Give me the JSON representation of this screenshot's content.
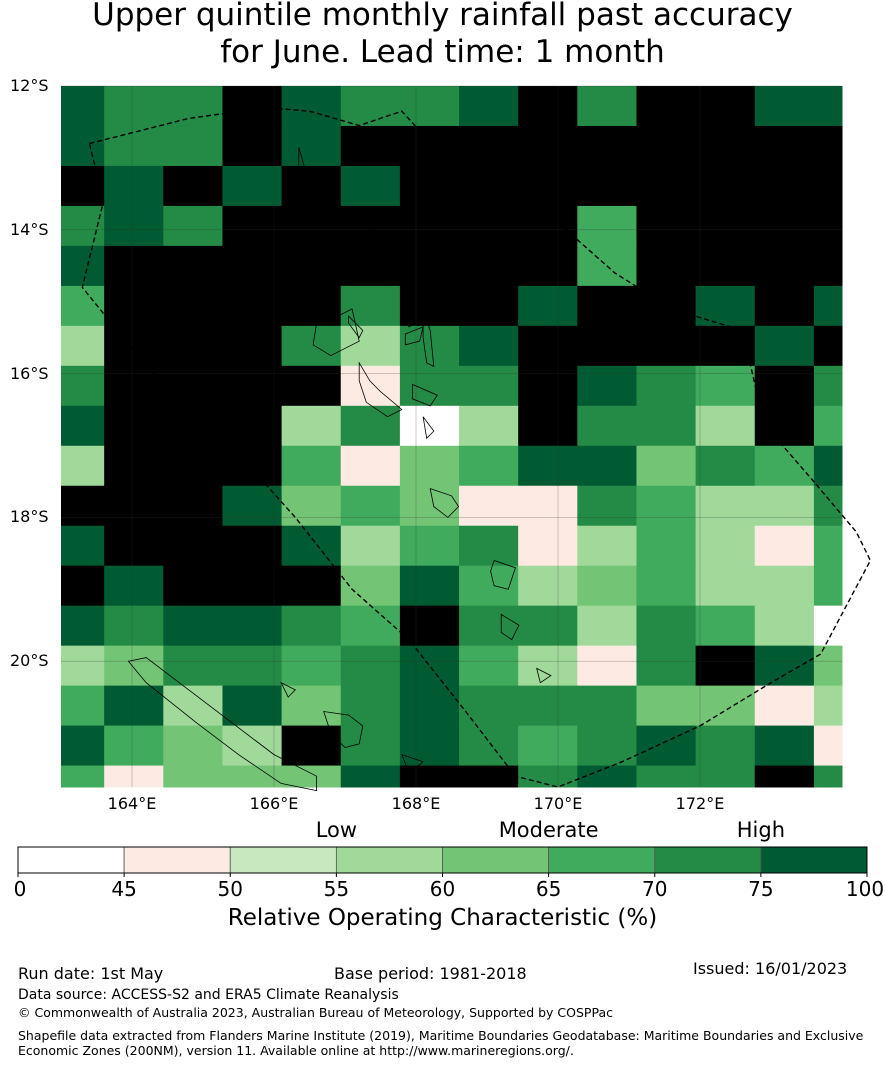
{
  "title_line1": "Upper quintile monthly rainfall past accuracy",
  "title_line2": "for June. Lead time: 1 month",
  "map": {
    "lon_min": 163.0,
    "lon_max": 174.0,
    "lat_min": -21.75,
    "lat_max": -12.0,
    "cell_lon": 0.833,
    "cell_lat": 0.556,
    "lat_ticks": [
      {
        "value": -12,
        "label": "12°S"
      },
      {
        "value": -14,
        "label": "14°S"
      },
      {
        "value": -16,
        "label": "16°S"
      },
      {
        "value": -18,
        "label": "18°S"
      },
      {
        "value": -20,
        "label": "20°S"
      }
    ],
    "lon_ticks": [
      {
        "value": 164,
        "label": "164°E"
      },
      {
        "value": 166,
        "label": "166°E"
      },
      {
        "value": 168,
        "label": "168°E"
      },
      {
        "value": 170,
        "label": "170°E"
      },
      {
        "value": 172,
        "label": "172°E"
      }
    ],
    "grid": [
      [
        7,
        6,
        6,
        8,
        7,
        6,
        6,
        7,
        8,
        6,
        8,
        8,
        7,
        7
      ],
      [
        7,
        6,
        6,
        8,
        7,
        8,
        8,
        8,
        8,
        8,
        8,
        8,
        8,
        8
      ],
      [
        8,
        7,
        8,
        7,
        8,
        7,
        8,
        8,
        8,
        8,
        8,
        8,
        8,
        8
      ],
      [
        6,
        7,
        6,
        8,
        8,
        8,
        8,
        8,
        8,
        5,
        8,
        8,
        8,
        8
      ],
      [
        7,
        8,
        8,
        8,
        8,
        8,
        8,
        8,
        8,
        5,
        8,
        8,
        8,
        8
      ],
      [
        5,
        8,
        8,
        8,
        8,
        6,
        8,
        8,
        7,
        8,
        8,
        7,
        8,
        7
      ],
      [
        3,
        8,
        8,
        8,
        6,
        3,
        6,
        7,
        8,
        8,
        8,
        8,
        7,
        8
      ],
      [
        6,
        8,
        8,
        8,
        8,
        1,
        6,
        6,
        8,
        7,
        6,
        5,
        8,
        6
      ],
      [
        7,
        8,
        8,
        8,
        3,
        6,
        0,
        3,
        8,
        6,
        6,
        3,
        8,
        5
      ],
      [
        3,
        8,
        8,
        8,
        5,
        1,
        4,
        5,
        7,
        7,
        4,
        6,
        5,
        7
      ],
      [
        8,
        8,
        8,
        7,
        4,
        5,
        4,
        1,
        1,
        6,
        5,
        3,
        3,
        6
      ],
      [
        7,
        8,
        8,
        8,
        7,
        3,
        5,
        6,
        1,
        3,
        5,
        3,
        1,
        5
      ],
      [
        8,
        7,
        8,
        8,
        8,
        4,
        7,
        5,
        3,
        4,
        5,
        3,
        3,
        5
      ],
      [
        7,
        6,
        7,
        7,
        6,
        5,
        8,
        6,
        6,
        3,
        6,
        5,
        3,
        0
      ],
      [
        3,
        4,
        6,
        6,
        5,
        6,
        7,
        5,
        3,
        1,
        6,
        8,
        7,
        4
      ],
      [
        5,
        7,
        3,
        7,
        4,
        6,
        7,
        6,
        6,
        6,
        4,
        4,
        1,
        3
      ],
      [
        7,
        5,
        4,
        3,
        8,
        6,
        7,
        6,
        5,
        6,
        7,
        6,
        7,
        1
      ],
      [
        5,
        1,
        4,
        4,
        4,
        7,
        8,
        8,
        6,
        7,
        6,
        6,
        8,
        6
      ],
      [
        6,
        4,
        1,
        6,
        1,
        5,
        8,
        7,
        7,
        5,
        8,
        6,
        8,
        4
      ]
    ],
    "eez_boundary": [
      [
        163.4,
        -12.8
      ],
      [
        164.8,
        -12.45
      ],
      [
        165.9,
        -12.3
      ],
      [
        166.5,
        -12.35
      ],
      [
        167.2,
        -12.55
      ],
      [
        167.8,
        -12.35
      ],
      [
        168.4,
        -13.0
      ],
      [
        169.0,
        -13.6
      ],
      [
        170.0,
        -13.9
      ],
      [
        170.8,
        -14.6
      ],
      [
        171.6,
        -15.1
      ],
      [
        172.6,
        -15.4
      ],
      [
        172.9,
        -16.7
      ],
      [
        173.6,
        -17.5
      ],
      [
        174.2,
        -18.2
      ],
      [
        174.4,
        -18.6
      ],
      [
        173.7,
        -19.9
      ],
      [
        173.0,
        -20.3
      ],
      [
        172.0,
        -20.9
      ],
      [
        170.9,
        -21.4
      ],
      [
        170.0,
        -21.75
      ],
      [
        169.4,
        -21.6
      ],
      [
        168.7,
        -20.7
      ],
      [
        167.9,
        -19.7
      ],
      [
        167.1,
        -19.0
      ],
      [
        166.3,
        -18.0
      ],
      [
        165.3,
        -16.9
      ],
      [
        164.2,
        -15.9
      ],
      [
        163.3,
        -14.8
      ],
      [
        163.6,
        -13.6
      ],
      [
        163.4,
        -12.8
      ]
    ],
    "islands": [
      [
        [
          166.35,
          -14.7
        ],
        [
          166.5,
          -14.85
        ],
        [
          166.6,
          -15.3
        ],
        [
          166.55,
          -15.6
        ],
        [
          166.8,
          -15.75
        ],
        [
          167.2,
          -15.55
        ],
        [
          167.1,
          -15.1
        ],
        [
          166.9,
          -15.2
        ],
        [
          166.8,
          -15.0
        ],
        [
          166.45,
          -14.65
        ],
        [
          166.35,
          -14.7
        ]
      ],
      [
        [
          167.05,
          -15.2
        ],
        [
          167.25,
          -15.4
        ],
        [
          167.2,
          -15.5
        ],
        [
          167.05,
          -15.3
        ],
        [
          167.05,
          -15.2
        ]
      ],
      [
        [
          167.85,
          -15.45
        ],
        [
          168.1,
          -15.35
        ],
        [
          168.05,
          -15.55
        ],
        [
          167.85,
          -15.6
        ],
        [
          167.85,
          -15.45
        ]
      ],
      [
        [
          168.1,
          -15.1
        ],
        [
          168.2,
          -15.4
        ],
        [
          168.25,
          -15.9
        ],
        [
          168.15,
          -15.85
        ],
        [
          168.1,
          -15.5
        ],
        [
          168.1,
          -15.1
        ]
      ],
      [
        [
          167.2,
          -15.85
        ],
        [
          167.35,
          -16.1
        ],
        [
          167.5,
          -16.25
        ],
        [
          167.8,
          -16.5
        ],
        [
          167.6,
          -16.6
        ],
        [
          167.3,
          -16.4
        ],
        [
          167.2,
          -16.1
        ],
        [
          167.2,
          -15.85
        ]
      ],
      [
        [
          167.95,
          -16.15
        ],
        [
          168.3,
          -16.3
        ],
        [
          168.2,
          -16.45
        ],
        [
          167.95,
          -16.35
        ],
        [
          167.95,
          -16.15
        ]
      ],
      [
        [
          168.1,
          -16.6
        ],
        [
          168.25,
          -16.8
        ],
        [
          168.15,
          -16.9
        ],
        [
          168.1,
          -16.6
        ]
      ],
      [
        [
          168.2,
          -17.6
        ],
        [
          168.5,
          -17.7
        ],
        [
          168.6,
          -17.85
        ],
        [
          168.45,
          -18.0
        ],
        [
          168.25,
          -17.85
        ],
        [
          168.2,
          -17.6
        ]
      ],
      [
        [
          169.1,
          -18.6
        ],
        [
          169.4,
          -18.7
        ],
        [
          169.3,
          -19.0
        ],
        [
          169.1,
          -18.95
        ],
        [
          169.05,
          -18.75
        ],
        [
          169.1,
          -18.6
        ]
      ],
      [
        [
          169.2,
          -19.35
        ],
        [
          169.45,
          -19.5
        ],
        [
          169.35,
          -19.7
        ],
        [
          169.2,
          -19.6
        ],
        [
          169.2,
          -19.35
        ]
      ],
      [
        [
          169.7,
          -20.1
        ],
        [
          169.9,
          -20.2
        ],
        [
          169.75,
          -20.3
        ],
        [
          169.7,
          -20.1
        ]
      ],
      [
        [
          166.35,
          -12.85
        ],
        [
          166.45,
          -13.2
        ],
        [
          166.35,
          -13.2
        ],
        [
          166.35,
          -12.85
        ]
      ],
      [
        [
          167.3,
          -13.75
        ],
        [
          167.5,
          -13.8
        ],
        [
          167.4,
          -14.0
        ],
        [
          167.3,
          -13.9
        ],
        [
          167.3,
          -13.75
        ]
      ],
      [
        [
          167.4,
          -14.2
        ],
        [
          167.6,
          -14.3
        ],
        [
          167.5,
          -14.4
        ],
        [
          167.4,
          -14.3
        ],
        [
          167.4,
          -14.2
        ]
      ],
      [
        [
          163.95,
          -20.0
        ],
        [
          164.2,
          -20.3
        ],
        [
          164.9,
          -20.85
        ],
        [
          165.5,
          -21.3
        ],
        [
          166.1,
          -21.7
        ],
        [
          166.6,
          -21.8
        ],
        [
          166.6,
          -21.6
        ],
        [
          166.0,
          -21.3
        ],
        [
          165.4,
          -20.85
        ],
        [
          164.8,
          -20.4
        ],
        [
          164.2,
          -19.95
        ],
        [
          163.95,
          -20.0
        ]
      ],
      [
        [
          166.7,
          -20.7
        ],
        [
          167.05,
          -20.75
        ],
        [
          167.25,
          -20.9
        ],
        [
          167.2,
          -21.15
        ],
        [
          167.0,
          -21.2
        ],
        [
          166.8,
          -21.0
        ],
        [
          166.7,
          -20.7
        ]
      ],
      [
        [
          167.8,
          -21.3
        ],
        [
          168.1,
          -21.4
        ],
        [
          167.9,
          -21.55
        ],
        [
          167.8,
          -21.3
        ]
      ],
      [
        [
          166.1,
          -20.3
        ],
        [
          166.3,
          -20.4
        ],
        [
          166.2,
          -20.5
        ],
        [
          166.1,
          -20.3
        ]
      ],
      [
        [
          167.9,
          -15.2
        ],
        [
          168.0,
          -15.3
        ],
        [
          167.9,
          -15.35
        ],
        [
          167.9,
          -15.2
        ]
      ]
    ]
  },
  "colorbar": {
    "bounds": [
      0,
      45,
      50,
      55,
      60,
      65,
      70,
      75,
      100
    ],
    "tick_labels": [
      "0",
      "45",
      "50",
      "55",
      "60",
      "65",
      "70",
      "75",
      "100"
    ],
    "colors": [
      "#ffffff",
      "#fdebe3",
      "#c7e9c0",
      "#a1d99b",
      "#74c476",
      "#41ab5d",
      "#238b45",
      "#005a32"
    ],
    "category_labels": [
      {
        "text": "Low",
        "class_index": 3
      },
      {
        "text": "Moderate",
        "class_index": 5
      },
      {
        "text": "High",
        "class_index": 7
      }
    ],
    "title": "Relative Operating Characteristic (%)"
  },
  "footer": {
    "run_date": "Run date: 1st May",
    "base_period": "Base period: 1981-2018",
    "issued": "Issued: 16/01/2023",
    "data_source": "Data source: ACCESS-S2 and ERA5 Climate Reanalysis",
    "copyright": "© Commonwealth of Australia 2023, Australian Bureau of Meteorology, Supported by COSPPac",
    "shapefile_line1": "Shapefile data extracted from Flanders Marine Institute (2019), Maritime Boundaries Geodatabase: Maritime Boundaries and Exclusive",
    "shapefile_line2": "Economic Zones (200NM), version 11. Available online at http://www.marineregions.org/."
  }
}
